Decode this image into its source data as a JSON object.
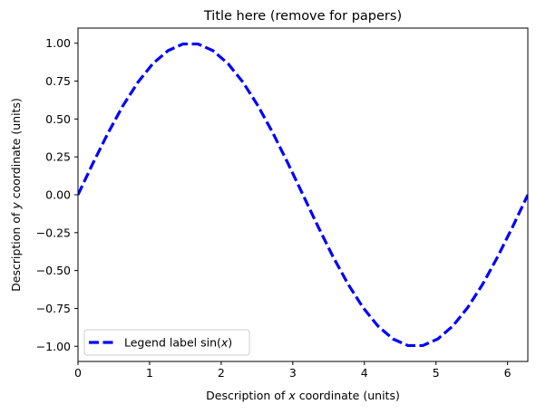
{
  "chart_data": {
    "type": "line",
    "title": "Title here (remove for papers)",
    "xlabel": {
      "before": "Description of ",
      "var": "x",
      "after": " coordinate (units)"
    },
    "ylabel": {
      "before": "Description of ",
      "var": "y",
      "after": " coordinate (units)"
    },
    "xlim": [
      0,
      6.283
    ],
    "ylim": [
      -1.1,
      1.1
    ],
    "xticks": [
      0,
      1,
      2,
      3,
      4,
      5,
      6
    ],
    "xtick_labels": [
      "0",
      "1",
      "2",
      "3",
      "4",
      "5",
      "6"
    ],
    "yticks": [
      -1.0,
      -0.75,
      -0.5,
      -0.25,
      0.0,
      0.25,
      0.5,
      0.75,
      1.0
    ],
    "ytick_labels": [
      "−1.00",
      "−0.75",
      "−0.50",
      "−0.25",
      "0.00",
      "0.25",
      "0.50",
      "0.75",
      "1.00"
    ],
    "grid": false,
    "legend_position": "lower-left",
    "series": [
      {
        "name": {
          "before": "Legend label sin(",
          "var": "x",
          "after": ")"
        },
        "color": "#0000ff",
        "linestyle": "dashed",
        "x": [
          0.0,
          0.209,
          0.419,
          0.628,
          0.838,
          1.047,
          1.257,
          1.466,
          1.676,
          1.885,
          2.094,
          2.304,
          2.513,
          2.723,
          2.932,
          3.142,
          3.351,
          3.56,
          3.77,
          3.979,
          4.189,
          4.398,
          4.608,
          4.817,
          5.027,
          5.236,
          5.445,
          5.655,
          5.864,
          6.074,
          6.283
        ],
        "y": [
          0.0,
          0.208,
          0.407,
          0.588,
          0.743,
          0.866,
          0.951,
          0.995,
          0.995,
          0.951,
          0.866,
          0.743,
          0.588,
          0.407,
          0.208,
          0.0,
          -0.208,
          -0.407,
          -0.588,
          -0.743,
          -0.866,
          -0.951,
          -0.995,
          -0.995,
          -0.951,
          -0.866,
          -0.743,
          -0.588,
          -0.407,
          -0.208,
          0.0
        ]
      }
    ]
  }
}
